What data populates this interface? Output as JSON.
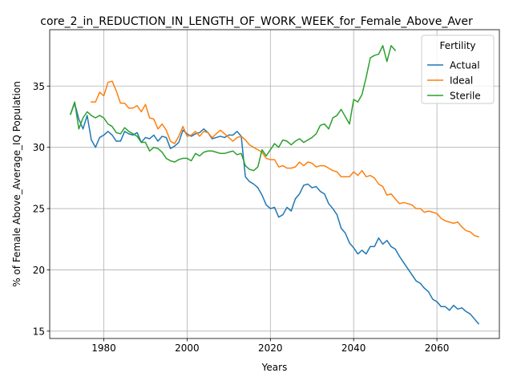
{
  "chart_data": {
    "type": "line",
    "title": "core_2_in_REDUCTION_IN_LENGTH_OF_WORK_WEEK_for_Female_Above_Aver",
    "xlabel": "Years",
    "ylabel": "% of Female Above_Average_IQ Population",
    "xlim": [
      1967,
      2075
    ],
    "ylim": [
      14.4,
      39.6
    ],
    "grid": true,
    "x_ticks": [
      1980,
      2000,
      2020,
      2040,
      2060
    ],
    "y_ticks": [
      15,
      20,
      25,
      30,
      35
    ],
    "legend": {
      "title": "Fertility",
      "placement": "top-right"
    },
    "series": [
      {
        "name": "Actual",
        "color": "#1f77b4",
        "points": [
          [
            1972,
            32.7
          ],
          [
            1973,
            33.6
          ],
          [
            1974,
            32.3
          ],
          [
            1975,
            31.5
          ],
          [
            1976,
            32.6
          ],
          [
            1977,
            30.6
          ],
          [
            1978,
            30.0
          ],
          [
            1979,
            30.8
          ],
          [
            1980,
            31.0
          ],
          [
            1981,
            31.3
          ],
          [
            1982,
            31.0
          ],
          [
            1983,
            30.5
          ],
          [
            1984,
            30.5
          ],
          [
            1985,
            31.3
          ],
          [
            1986,
            31.1
          ],
          [
            1987,
            31.0
          ],
          [
            1988,
            31.2
          ],
          [
            1989,
            30.4
          ],
          [
            1990,
            30.8
          ],
          [
            1991,
            30.7
          ],
          [
            1992,
            31.0
          ],
          [
            1993,
            30.5
          ],
          [
            1994,
            30.9
          ],
          [
            1995,
            30.8
          ],
          [
            1996,
            29.9
          ],
          [
            1997,
            30.1
          ],
          [
            1998,
            30.4
          ],
          [
            1999,
            31.4
          ],
          [
            2000,
            31.1
          ],
          [
            2001,
            30.9
          ],
          [
            2002,
            31.1
          ],
          [
            2003,
            31.2
          ],
          [
            2004,
            31.5
          ],
          [
            2005,
            31.2
          ],
          [
            2006,
            30.7
          ],
          [
            2007,
            30.8
          ],
          [
            2008,
            30.9
          ],
          [
            2009,
            30.8
          ],
          [
            2010,
            31.0
          ],
          [
            2011,
            31.0
          ],
          [
            2012,
            31.3
          ],
          [
            2013,
            30.9
          ],
          [
            2014,
            27.6
          ],
          [
            2015,
            27.2
          ],
          [
            2016,
            27.0
          ],
          [
            2017,
            26.7
          ],
          [
            2018,
            26.1
          ],
          [
            2019,
            25.3
          ],
          [
            2020,
            25.0
          ],
          [
            2021,
            25.1
          ],
          [
            2022,
            24.3
          ],
          [
            2023,
            24.5
          ],
          [
            2024,
            25.1
          ],
          [
            2025,
            24.8
          ],
          [
            2026,
            25.8
          ],
          [
            2027,
            26.2
          ],
          [
            2028,
            26.9
          ],
          [
            2029,
            27.0
          ],
          [
            2030,
            26.7
          ],
          [
            2031,
            26.8
          ],
          [
            2032,
            26.4
          ],
          [
            2033,
            26.2
          ],
          [
            2034,
            25.4
          ],
          [
            2035,
            25.0
          ],
          [
            2036,
            24.5
          ],
          [
            2037,
            23.4
          ],
          [
            2038,
            23.0
          ],
          [
            2039,
            22.2
          ],
          [
            2040,
            21.8
          ],
          [
            2041,
            21.3
          ],
          [
            2042,
            21.6
          ],
          [
            2043,
            21.3
          ],
          [
            2044,
            21.9
          ],
          [
            2045,
            21.9
          ],
          [
            2046,
            22.6
          ],
          [
            2047,
            22.1
          ],
          [
            2048,
            22.4
          ],
          [
            2049,
            21.9
          ],
          [
            2050,
            21.7
          ],
          [
            2051,
            21.1
          ],
          [
            2052,
            20.6
          ],
          [
            2053,
            20.1
          ],
          [
            2054,
            19.6
          ],
          [
            2055,
            19.1
          ],
          [
            2056,
            18.9
          ],
          [
            2057,
            18.5
          ],
          [
            2058,
            18.2
          ],
          [
            2059,
            17.6
          ],
          [
            2060,
            17.4
          ],
          [
            2061,
            17.0
          ],
          [
            2062,
            17.0
          ],
          [
            2063,
            16.7
          ],
          [
            2064,
            17.1
          ],
          [
            2065,
            16.8
          ],
          [
            2066,
            16.9
          ],
          [
            2067,
            16.6
          ],
          [
            2068,
            16.4
          ],
          [
            2069,
            16.0
          ],
          [
            2070,
            15.6
          ]
        ]
      },
      {
        "name": "Ideal",
        "color": "#ff7f0e",
        "points": [
          [
            1977,
            33.7
          ],
          [
            1978,
            33.7
          ],
          [
            1979,
            34.5
          ],
          [
            1980,
            34.2
          ],
          [
            1981,
            35.3
          ],
          [
            1982,
            35.4
          ],
          [
            1983,
            34.6
          ],
          [
            1984,
            33.6
          ],
          [
            1985,
            33.6
          ],
          [
            1986,
            33.2
          ],
          [
            1987,
            33.2
          ],
          [
            1988,
            33.4
          ],
          [
            1989,
            32.9
          ],
          [
            1990,
            33.5
          ],
          [
            1991,
            32.4
          ],
          [
            1992,
            32.3
          ],
          [
            1993,
            31.5
          ],
          [
            1994,
            31.9
          ],
          [
            1995,
            31.4
          ],
          [
            1996,
            30.5
          ],
          [
            1997,
            30.3
          ],
          [
            1998,
            30.9
          ],
          [
            1999,
            31.7
          ],
          [
            2000,
            30.9
          ],
          [
            2001,
            31.0
          ],
          [
            2002,
            31.3
          ],
          [
            2003,
            30.9
          ],
          [
            2004,
            31.3
          ],
          [
            2005,
            31.2
          ],
          [
            2006,
            30.8
          ],
          [
            2007,
            31.1
          ],
          [
            2008,
            31.4
          ],
          [
            2009,
            31.1
          ],
          [
            2010,
            30.8
          ],
          [
            2011,
            30.5
          ],
          [
            2012,
            30.8
          ],
          [
            2013,
            30.9
          ],
          [
            2014,
            30.6
          ],
          [
            2015,
            30.2
          ],
          [
            2016,
            30.0
          ],
          [
            2017,
            29.8
          ],
          [
            2018,
            29.6
          ],
          [
            2019,
            29.1
          ],
          [
            2020,
            29.0
          ],
          [
            2021,
            29.0
          ],
          [
            2022,
            28.4
          ],
          [
            2023,
            28.5
          ],
          [
            2024,
            28.3
          ],
          [
            2025,
            28.3
          ],
          [
            2026,
            28.4
          ],
          [
            2027,
            28.8
          ],
          [
            2028,
            28.5
          ],
          [
            2029,
            28.8
          ],
          [
            2030,
            28.7
          ],
          [
            2031,
            28.4
          ],
          [
            2032,
            28.5
          ],
          [
            2033,
            28.5
          ],
          [
            2034,
            28.3
          ],
          [
            2035,
            28.1
          ],
          [
            2036,
            28.0
          ],
          [
            2037,
            27.6
          ],
          [
            2038,
            27.6
          ],
          [
            2039,
            27.6
          ],
          [
            2040,
            28.0
          ],
          [
            2041,
            27.7
          ],
          [
            2042,
            28.1
          ],
          [
            2043,
            27.6
          ],
          [
            2044,
            27.7
          ],
          [
            2045,
            27.5
          ],
          [
            2046,
            27.0
          ],
          [
            2047,
            26.8
          ],
          [
            2048,
            26.1
          ],
          [
            2049,
            26.2
          ],
          [
            2050,
            25.8
          ],
          [
            2051,
            25.4
          ],
          [
            2052,
            25.5
          ],
          [
            2053,
            25.4
          ],
          [
            2054,
            25.3
          ],
          [
            2055,
            25.0
          ],
          [
            2056,
            25.0
          ],
          [
            2057,
            24.7
          ],
          [
            2058,
            24.8
          ],
          [
            2059,
            24.7
          ],
          [
            2060,
            24.6
          ],
          [
            2061,
            24.2
          ],
          [
            2062,
            24.0
          ],
          [
            2063,
            23.9
          ],
          [
            2064,
            23.8
          ],
          [
            2065,
            23.9
          ],
          [
            2066,
            23.5
          ],
          [
            2067,
            23.2
          ],
          [
            2068,
            23.1
          ],
          [
            2069,
            22.8
          ],
          [
            2070,
            22.7
          ]
        ]
      },
      {
        "name": "Sterile",
        "color": "#2ca02c",
        "points": [
          [
            1972,
            32.7
          ],
          [
            1973,
            33.7
          ],
          [
            1974,
            31.5
          ],
          [
            1975,
            32.4
          ],
          [
            1976,
            32.9
          ],
          [
            1977,
            32.6
          ],
          [
            1978,
            32.4
          ],
          [
            1979,
            32.6
          ],
          [
            1980,
            32.4
          ],
          [
            1981,
            31.9
          ],
          [
            1982,
            31.7
          ],
          [
            1983,
            31.2
          ],
          [
            1984,
            31.1
          ],
          [
            1985,
            31.6
          ],
          [
            1986,
            31.3
          ],
          [
            1987,
            31.1
          ],
          [
            1988,
            30.9
          ],
          [
            1989,
            30.4
          ],
          [
            1990,
            30.4
          ],
          [
            1991,
            29.7
          ],
          [
            1992,
            30.0
          ],
          [
            1993,
            29.9
          ],
          [
            1994,
            29.6
          ],
          [
            1995,
            29.1
          ],
          [
            1996,
            28.9
          ],
          [
            1997,
            28.8
          ],
          [
            1998,
            29.0
          ],
          [
            1999,
            29.1
          ],
          [
            2000,
            29.1
          ],
          [
            2001,
            28.9
          ],
          [
            2002,
            29.5
          ],
          [
            2003,
            29.3
          ],
          [
            2004,
            29.6
          ],
          [
            2005,
            29.7
          ],
          [
            2006,
            29.7
          ],
          [
            2007,
            29.6
          ],
          [
            2008,
            29.5
          ],
          [
            2009,
            29.5
          ],
          [
            2010,
            29.6
          ],
          [
            2011,
            29.7
          ],
          [
            2012,
            29.4
          ],
          [
            2013,
            29.5
          ],
          [
            2014,
            28.5
          ],
          [
            2015,
            28.2
          ],
          [
            2016,
            28.1
          ],
          [
            2017,
            28.4
          ],
          [
            2018,
            29.8
          ],
          [
            2019,
            29.3
          ],
          [
            2020,
            29.8
          ],
          [
            2021,
            30.3
          ],
          [
            2022,
            30.0
          ],
          [
            2023,
            30.6
          ],
          [
            2024,
            30.5
          ],
          [
            2025,
            30.2
          ],
          [
            2026,
            30.5
          ],
          [
            2027,
            30.7
          ],
          [
            2028,
            30.4
          ],
          [
            2029,
            30.6
          ],
          [
            2030,
            30.8
          ],
          [
            2031,
            31.1
          ],
          [
            2032,
            31.8
          ],
          [
            2033,
            31.9
          ],
          [
            2034,
            31.5
          ],
          [
            2035,
            32.4
          ],
          [
            2036,
            32.6
          ],
          [
            2037,
            33.1
          ],
          [
            2038,
            32.5
          ],
          [
            2039,
            31.9
          ],
          [
            2040,
            33.9
          ],
          [
            2041,
            33.7
          ],
          [
            2042,
            34.3
          ],
          [
            2043,
            35.7
          ],
          [
            2044,
            37.3
          ],
          [
            2045,
            37.5
          ],
          [
            2046,
            37.6
          ],
          [
            2047,
            38.3
          ],
          [
            2048,
            37.0
          ],
          [
            2049,
            38.3
          ],
          [
            2050,
            37.9
          ]
        ]
      }
    ]
  }
}
